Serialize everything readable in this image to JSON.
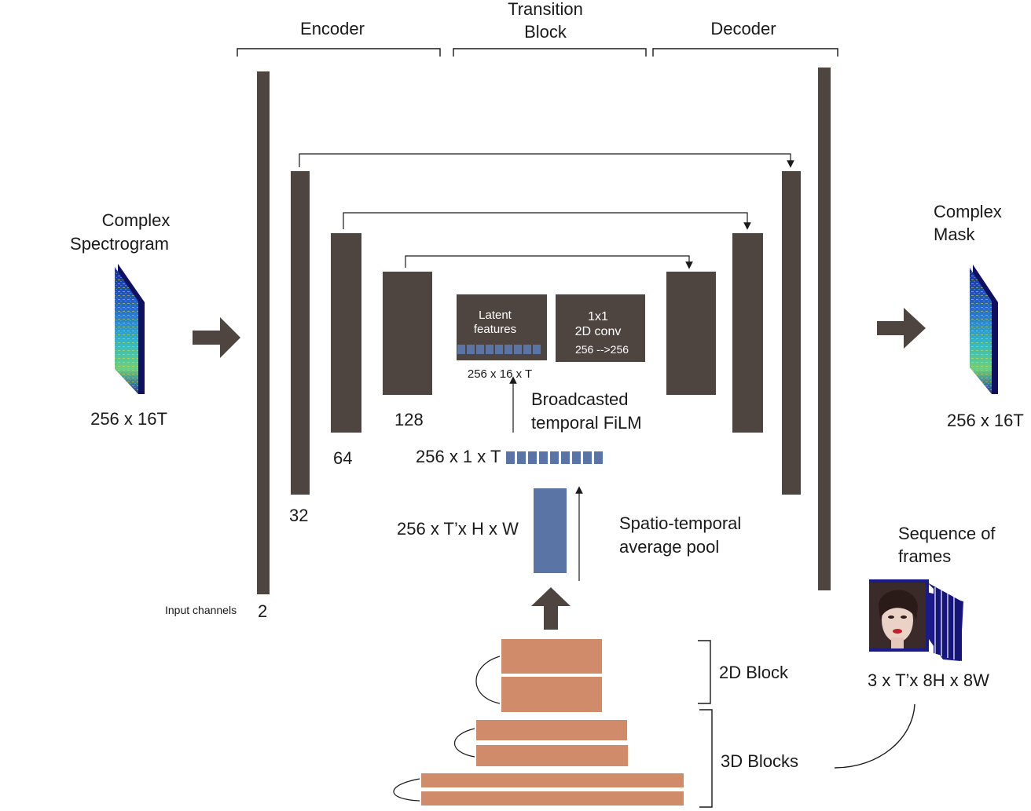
{
  "sections": {
    "encoder": "Encoder",
    "transition_line1": "Transition",
    "transition_line2": "Block",
    "decoder": "Decoder"
  },
  "input": {
    "title_line1": "Complex",
    "title_line2": "Spectrogram",
    "dims": "256 x 16T"
  },
  "output": {
    "title_line1": "Complex",
    "title_line2": "Mask",
    "dims": "256 x 16T"
  },
  "encoder_channels": {
    "input_label": "Input channels",
    "c2": "2",
    "c32": "32",
    "c64": "64",
    "c128": "128"
  },
  "transition": {
    "latent_line1": "Latent",
    "latent_line2": "features",
    "latent_dims": "256 x 16 x T",
    "conv_line1": "1x1",
    "conv_line2": "2D conv",
    "conv_line3": "256 -->256"
  },
  "film": {
    "line1": "Broadcasted",
    "line2": "temporal FiLM",
    "vector_dims": "256 x 1 x T"
  },
  "pool": {
    "features_dims": "256 x T’x H x W",
    "line1": "Spatio-temporal",
    "line2": "average pool"
  },
  "frames": {
    "title_line1": "Sequence of",
    "title_line2": "frames",
    "dims": "3 x T’x 8H x 8W"
  },
  "blocks": {
    "block2d": "2D Block",
    "block3d": "3D Blocks"
  },
  "colors": {
    "layer": "#4e4540",
    "vector": "#5b74a6",
    "block": "#d08c6a",
    "text": "#1a1a1a"
  }
}
